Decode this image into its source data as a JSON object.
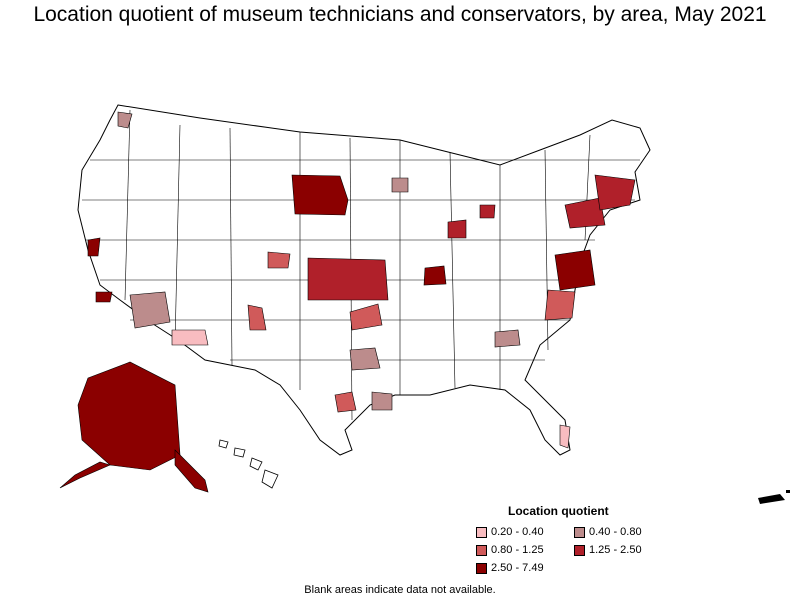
{
  "title": "Location quotient of museum technicians and conservators, by area, May 2021",
  "legend": {
    "title": "Location quotient",
    "items": [
      {
        "label": "0.20 - 0.40",
        "color": "#f8bcc0"
      },
      {
        "label": "0.40 - 0.80",
        "color": "#bc8c8c"
      },
      {
        "label": "0.80 - 1.25",
        "color": "#d05a5a"
      },
      {
        "label": "1.25 - 2.50",
        "color": "#b0202a"
      },
      {
        "label": "2.50 - 7.49",
        "color": "#8b0000"
      }
    ]
  },
  "footnote": "Blank areas indicate data not available."
}
